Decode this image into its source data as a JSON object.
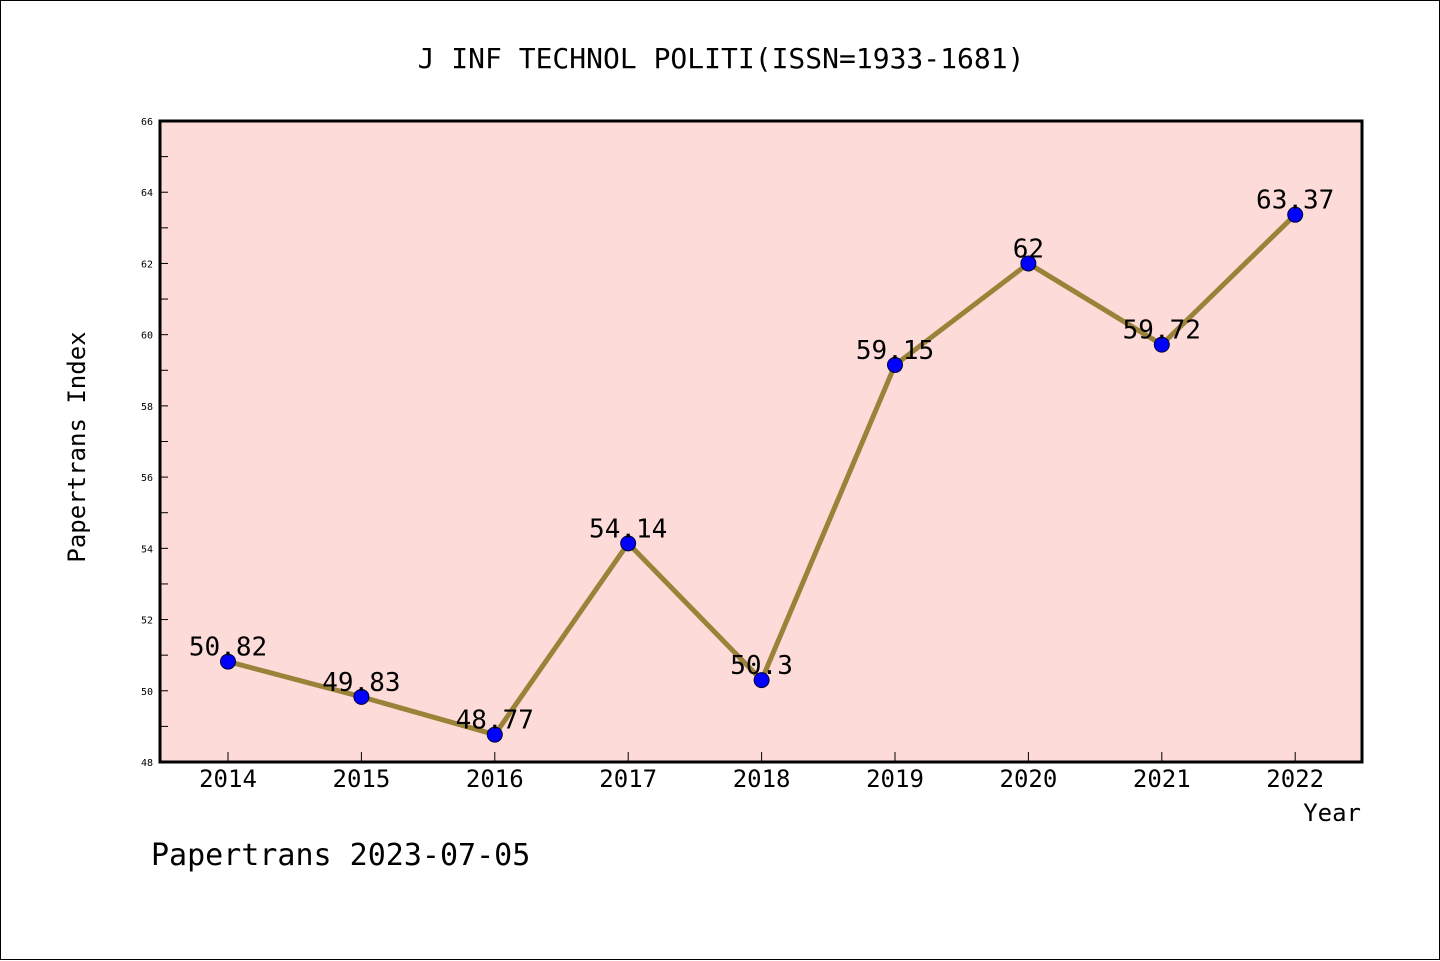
{
  "chart_data": {
    "type": "line",
    "title": "J INF TECHNOL POLITI(ISSN=1933-1681)",
    "xlabel": "Year",
    "ylabel": "Papertrans Index",
    "footer": "Papertrans 2023-07-05",
    "categories": [
      "2014",
      "2015",
      "2016",
      "2017",
      "2018",
      "2019",
      "2020",
      "2021",
      "2022"
    ],
    "series": [
      {
        "values": [
          50.82,
          49.83,
          48.77,
          54.14,
          50.3,
          59.15,
          62,
          59.72,
          63.37
        ],
        "labels": [
          "50.82",
          "49.83",
          "48.77",
          "54.14",
          "50.3",
          "59.15",
          "62",
          "59.72",
          "63.37"
        ]
      }
    ],
    "ylim": [
      48,
      66
    ],
    "yticks": [
      "48",
      "50",
      "52",
      "54",
      "56",
      "58",
      "60",
      "62",
      "64",
      "66"
    ],
    "grid": false,
    "colors": {
      "plot_background": "#fddbd9",
      "line": "#9a8238",
      "marker": "#0000ff",
      "frame": "#000000"
    }
  }
}
